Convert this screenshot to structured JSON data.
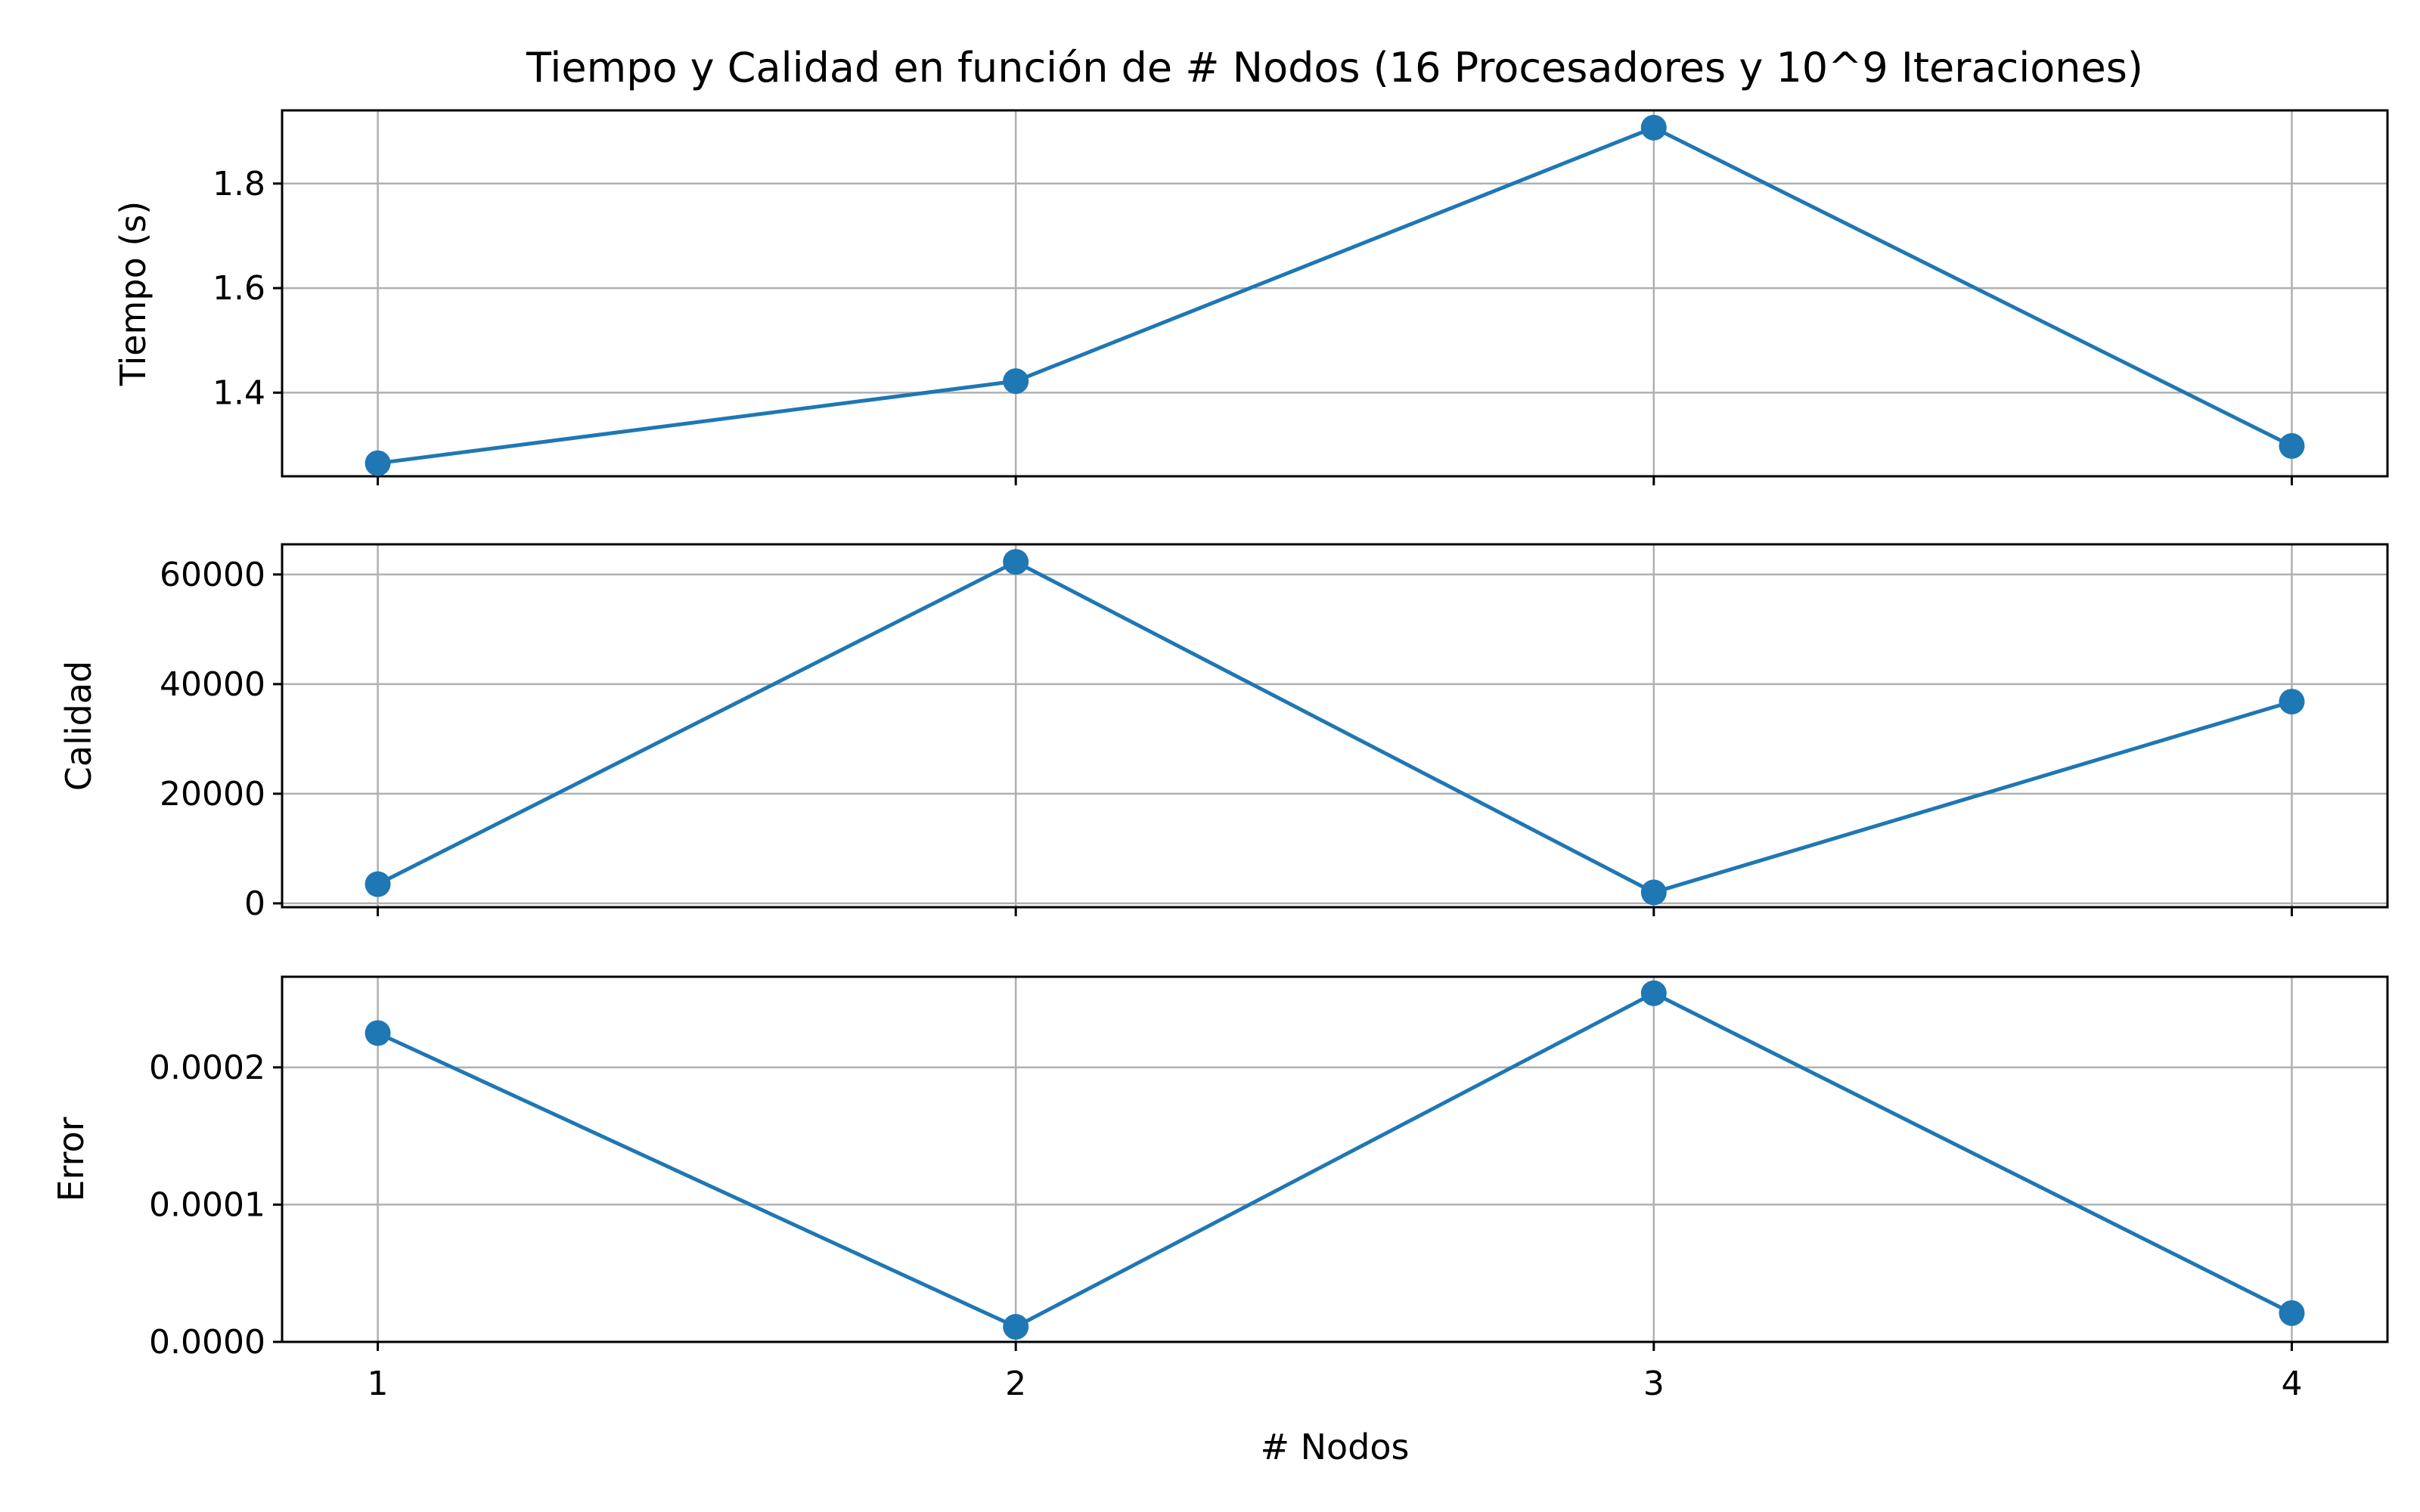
{
  "chart_data": {
    "type": "line",
    "title": "Tiempo y Calidad en función de # Nodos (16 Procesadores y 10^9 Iteraciones)",
    "xlabel": "# Nodos",
    "x": [
      1,
      2,
      3,
      4
    ],
    "x_ticks": [
      "1",
      "2",
      "3",
      "4"
    ],
    "grid": true,
    "color": "#1f77b4",
    "subplots": [
      {
        "ylabel": "Tiempo (s)",
        "ylim": [
          1.24,
          1.94
        ],
        "y_ticks": [
          1.4,
          1.6,
          1.8
        ],
        "y_tick_labels": [
          "1.4",
          "1.6",
          "1.8"
        ],
        "values": [
          1.265,
          1.422,
          1.907,
          1.298
        ]
      },
      {
        "ylabel": "Calidad",
        "ylim": [
          -700,
          65500
        ],
        "y_ticks": [
          0,
          20000,
          40000,
          60000
        ],
        "y_tick_labels": [
          "0",
          "20000",
          "40000",
          "60000"
        ],
        "values": [
          3500,
          62300,
          2000,
          36800
        ]
      },
      {
        "ylabel": "Error",
        "ylim": [
          0,
          0.000266
        ],
        "y_ticks": [
          0,
          0.0001,
          0.0002
        ],
        "y_tick_labels": [
          "0.0000",
          "0.0001",
          "0.0002"
        ],
        "values": [
          0.000225,
          1.1e-05,
          0.000254,
          2.1e-05
        ]
      }
    ]
  }
}
